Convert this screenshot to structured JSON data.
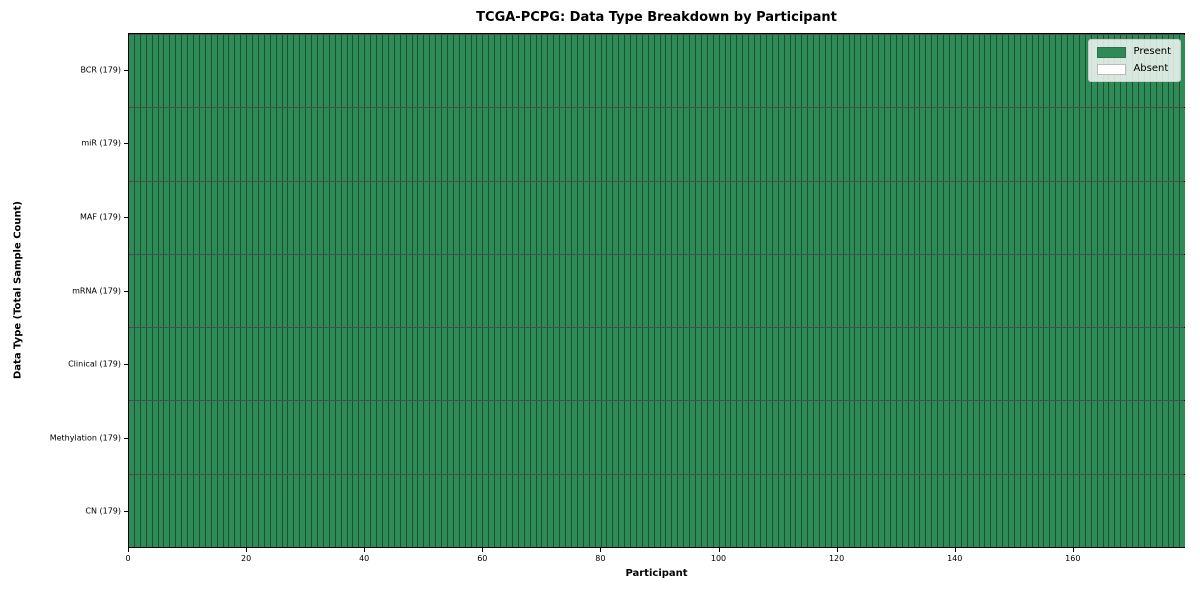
{
  "figure": {
    "title": "TCGA-PCPG: Data Type Breakdown by Participant"
  },
  "chart_data": {
    "type": "heatmap",
    "title": "TCGA-PCPG: Data Type Breakdown by Participant",
    "xlabel": "Participant",
    "ylabel": "Data Type (Total Sample Count)",
    "xlim": [
      0,
      179
    ],
    "x_ticks": [
      0,
      20,
      40,
      60,
      80,
      100,
      120,
      140,
      160
    ],
    "n_participants": 179,
    "categories": [
      "BCR (179)",
      "miR (179)",
      "MAF (179)",
      "mRNA (179)",
      "Clinical (179)",
      "Methylation (179)",
      "CN (179)"
    ],
    "series": [
      {
        "name": "BCR",
        "label": "BCR (179)",
        "total_samples": 179,
        "present_count": 179,
        "absent_count": 0
      },
      {
        "name": "miR",
        "label": "miR (179)",
        "total_samples": 179,
        "present_count": 179,
        "absent_count": 0
      },
      {
        "name": "MAF",
        "label": "MAF (179)",
        "total_samples": 179,
        "present_count": 179,
        "absent_count": 0
      },
      {
        "name": "mRNA",
        "label": "mRNA (179)",
        "total_samples": 179,
        "present_count": 179,
        "absent_count": 0
      },
      {
        "name": "Clinical",
        "label": "Clinical (179)",
        "total_samples": 179,
        "present_count": 179,
        "absent_count": 0
      },
      {
        "name": "Methylation",
        "label": "Methylation (179)",
        "total_samples": 179,
        "present_count": 179,
        "absent_count": 0
      },
      {
        "name": "CN",
        "label": "CN (179)",
        "total_samples": 179,
        "present_count": 179,
        "absent_count": 0
      }
    ],
    "legend": {
      "position": "upper right",
      "entries": [
        {
          "label": "Present",
          "color": "#2e8b57"
        },
        {
          "label": "Absent",
          "color": "#ffffff"
        }
      ]
    },
    "colors": {
      "present": "#2e8b57",
      "absent": "#ffffff",
      "cell_edge": "#163a26",
      "spine": "#000000",
      "legend_border": "#cccccc"
    },
    "grid": "off"
  }
}
